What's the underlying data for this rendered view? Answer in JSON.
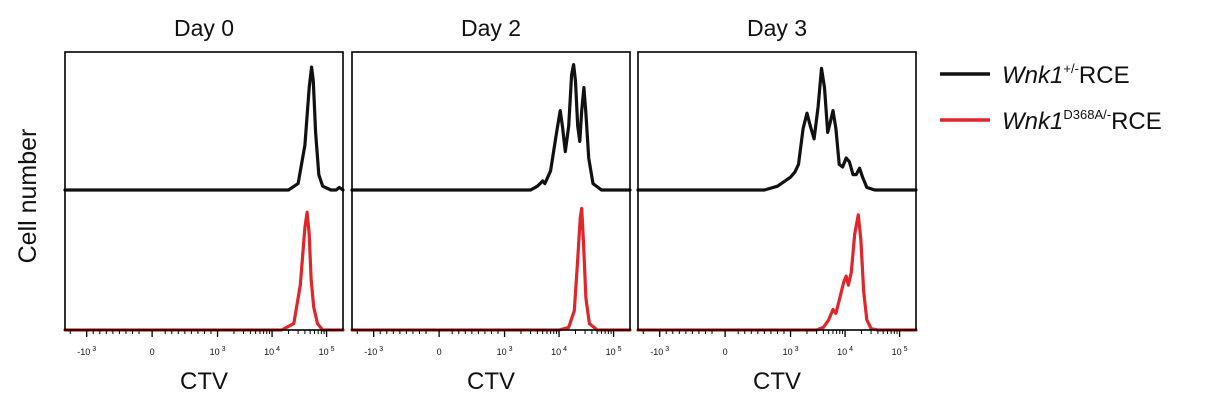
{
  "colors": {
    "black_series": "#111111",
    "red_series": "#e0262a",
    "frame": "#000000"
  },
  "ylabel": "Cell number",
  "legend": [
    {
      "prefix": "Wnk1",
      "sup": "+/-",
      "suffix": "RCE",
      "color": "#111111"
    },
    {
      "prefix": "Wnk1",
      "sup": "D368A/-",
      "suffix": "RCE",
      "color": "#e0262a"
    }
  ],
  "xtick_labels": [
    {
      "v": -1000,
      "base": "-10",
      "exp": "3"
    },
    {
      "v": 0,
      "base": "0",
      "exp": ""
    },
    {
      "v": 1000,
      "base": "10",
      "exp": "3"
    },
    {
      "v": 10000,
      "base": "10",
      "exp": "4"
    },
    {
      "v": 100000,
      "base": "10",
      "exp": "5"
    }
  ],
  "chart_data": [
    {
      "type": "line",
      "title": "Day 0",
      "xlabel": "CTV",
      "ylabel": "Cell number",
      "x_scale": "biexponential",
      "xlim": [
        -2500,
        200000
      ],
      "series": [
        {
          "color": "#111111",
          "points": [
            [
              -2500,
              0
            ],
            [
              20000,
              0
            ],
            [
              30000,
              0.05
            ],
            [
              40000,
              0.35
            ],
            [
              48000,
              0.8
            ],
            [
              53000,
              0.96
            ],
            [
              57000,
              0.85
            ],
            [
              63000,
              0.45
            ],
            [
              72000,
              0.12
            ],
            [
              85000,
              0.03
            ],
            [
              120000,
              0
            ],
            [
              150000,
              0
            ],
            [
              170000,
              0.02
            ],
            [
              200000,
              0
            ]
          ]
        },
        {
          "color": "#e0262a",
          "points": [
            [
              -2500,
              0
            ],
            [
              15000,
              0
            ],
            [
              25000,
              0.05
            ],
            [
              33000,
              0.35
            ],
            [
              40000,
              0.8
            ],
            [
              44000,
              0.92
            ],
            [
              48000,
              0.75
            ],
            [
              52000,
              0.4
            ],
            [
              58000,
              0.18
            ],
            [
              68000,
              0.05
            ],
            [
              85000,
              0
            ],
            [
              200000,
              0
            ]
          ]
        }
      ]
    },
    {
      "type": "line",
      "title": "Day 2",
      "xlabel": "CTV",
      "ylabel": "Cell number",
      "x_scale": "biexponential",
      "xlim": [
        -2500,
        200000
      ],
      "series": [
        {
          "color": "#111111",
          "points": [
            [
              -2500,
              0
            ],
            [
              3000,
              0
            ],
            [
              4000,
              0.03
            ],
            [
              5000,
              0.07
            ],
            [
              5500,
              0.05
            ],
            [
              7000,
              0.15
            ],
            [
              9000,
              0.45
            ],
            [
              10500,
              0.62
            ],
            [
              11500,
              0.5
            ],
            [
              13000,
              0.3
            ],
            [
              15000,
              0.5
            ],
            [
              17000,
              0.9
            ],
            [
              18500,
              0.98
            ],
            [
              20000,
              0.85
            ],
            [
              22000,
              0.5
            ],
            [
              24000,
              0.38
            ],
            [
              26000,
              0.62
            ],
            [
              28500,
              0.8
            ],
            [
              31000,
              0.6
            ],
            [
              35000,
              0.25
            ],
            [
              42000,
              0.05
            ],
            [
              60000,
              0
            ],
            [
              200000,
              0
            ]
          ]
        },
        {
          "color": "#e0262a",
          "points": [
            [
              -2500,
              0
            ],
            [
              10000,
              0
            ],
            [
              15000,
              0.02
            ],
            [
              19000,
              0.15
            ],
            [
              22000,
              0.55
            ],
            [
              24500,
              0.88
            ],
            [
              26000,
              0.95
            ],
            [
              28000,
              0.7
            ],
            [
              31000,
              0.25
            ],
            [
              36000,
              0.05
            ],
            [
              50000,
              0
            ],
            [
              200000,
              0
            ]
          ]
        }
      ]
    },
    {
      "type": "line",
      "title": "Day 3",
      "xlabel": "CTV",
      "ylabel": "Cell number",
      "x_scale": "biexponential",
      "xlim": [
        -2500,
        200000
      ],
      "series": [
        {
          "color": "#111111",
          "points": [
            [
              -2500,
              0
            ],
            [
              600,
              0
            ],
            [
              800,
              0.03
            ],
            [
              1000,
              0.1
            ],
            [
              1200,
              0.14
            ],
            [
              1400,
              0.2
            ],
            [
              1700,
              0.48
            ],
            [
              2000,
              0.6
            ],
            [
              2300,
              0.5
            ],
            [
              2700,
              0.4
            ],
            [
              3200,
              0.65
            ],
            [
              3700,
              0.95
            ],
            [
              4200,
              0.8
            ],
            [
              4800,
              0.45
            ],
            [
              5300,
              0.52
            ],
            [
              6000,
              0.62
            ],
            [
              6800,
              0.48
            ],
            [
              7800,
              0.2
            ],
            [
              9000,
              0.18
            ],
            [
              10500,
              0.25
            ],
            [
              12000,
              0.22
            ],
            [
              14000,
              0.12
            ],
            [
              16000,
              0.12
            ],
            [
              18500,
              0.17
            ],
            [
              21000,
              0.1
            ],
            [
              25000,
              0.02
            ],
            [
              35000,
              0
            ],
            [
              200000,
              0
            ]
          ]
        },
        {
          "color": "#e0262a",
          "points": [
            [
              -2500,
              0
            ],
            [
              3000,
              0
            ],
            [
              4000,
              0.02
            ],
            [
              5000,
              0.08
            ],
            [
              6000,
              0.16
            ],
            [
              6800,
              0.13
            ],
            [
              8000,
              0.25
            ],
            [
              9500,
              0.38
            ],
            [
              10500,
              0.42
            ],
            [
              11500,
              0.35
            ],
            [
              13000,
              0.45
            ],
            [
              15000,
              0.75
            ],
            [
              17500,
              0.9
            ],
            [
              19500,
              0.7
            ],
            [
              22000,
              0.3
            ],
            [
              25000,
              0.08
            ],
            [
              30000,
              0.01
            ],
            [
              40000,
              0
            ],
            [
              200000,
              0
            ]
          ]
        }
      ]
    }
  ]
}
